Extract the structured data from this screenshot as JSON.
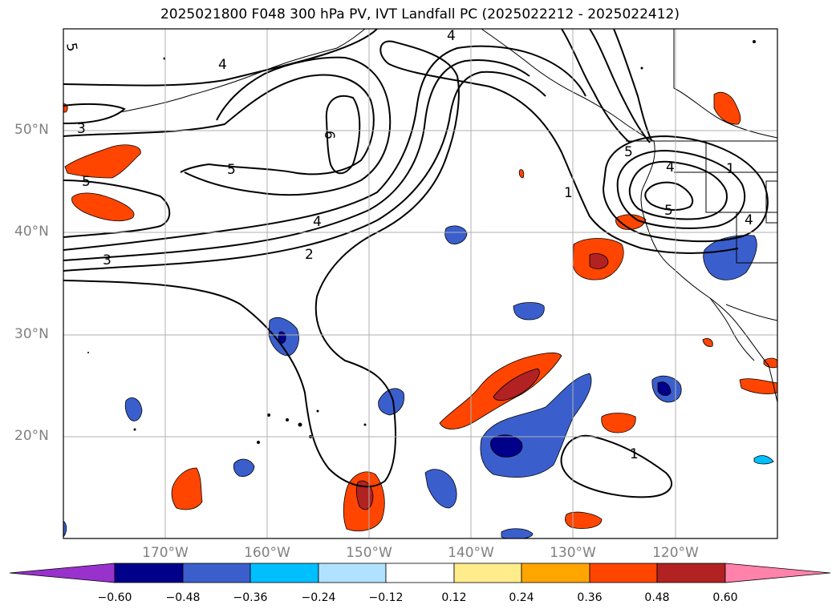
{
  "title": "2025021800 F048 300 hPa PV, IVT Landfall PC (2025022212 - 2025022412)",
  "map": {
    "projection": "PlateCarree",
    "lon_range": [
      -180,
      -110
    ],
    "lat_range": [
      10,
      60
    ],
    "gridlines": true,
    "lat_labels": [
      "50°N",
      "40°N",
      "30°N",
      "20°N"
    ],
    "lon_labels": [
      "170°W",
      "160°W",
      "150°W",
      "140°W",
      "130°W",
      "120°W"
    ],
    "pv_contour_labels": [
      "5",
      "4",
      "3",
      "5",
      "5",
      "6",
      "4",
      "3",
      "2",
      "1",
      "4",
      "5",
      "5",
      "4",
      "4",
      "1",
      "1"
    ]
  },
  "colorbar": {
    "extend": "both",
    "ticks": [
      "−0.60",
      "−0.48",
      "−0.36",
      "−0.24",
      "−0.12",
      "0.12",
      "0.24",
      "0.36",
      "0.48",
      "0.60"
    ],
    "colors": [
      "#9932cc",
      "#00008b",
      "#3a5fcd",
      "#00bfff",
      "#b0e2ff",
      "#ffffff",
      "#ffec8b",
      "#ffa500",
      "#ff4500",
      "#b22222",
      "#ff82ab"
    ]
  }
}
